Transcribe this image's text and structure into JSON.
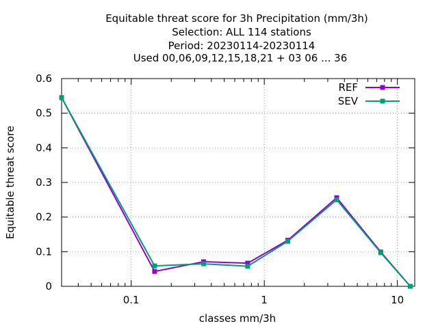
{
  "chart_data": {
    "type": "line",
    "title_lines": [
      "Equitable threat score  for 3h Precipitation (mm/3h)",
      "Selection: ALL    114 stations",
      "Period: 20230114-20230114",
      "Used  00,06,09,12,15,18,21  + 03 06 ... 36"
    ],
    "xlabel": "classes mm/3h",
    "ylabel": "Equitable threat score",
    "x_scale": "log",
    "xlim": [
      0.03,
      13.5
    ],
    "ylim": [
      0,
      0.6
    ],
    "x_ticks": [
      {
        "value": 0.1,
        "label": "0.1"
      },
      {
        "value": 1,
        "label": "1"
      },
      {
        "value": 10,
        "label": "10"
      }
    ],
    "y_ticks": [
      {
        "value": 0,
        "label": "0"
      },
      {
        "value": 0.1,
        "label": "0.1"
      },
      {
        "value": 0.2,
        "label": "0.2"
      },
      {
        "value": 0.3,
        "label": "0.3"
      },
      {
        "value": 0.4,
        "label": "0.4"
      },
      {
        "value": 0.5,
        "label": "0.5"
      },
      {
        "value": 0.6,
        "label": "0.6"
      }
    ],
    "grid": true,
    "legend_position": "top-right",
    "x": [
      0.03,
      0.15,
      0.35,
      0.75,
      1.5,
      3.5,
      7.5,
      12.5
    ],
    "series": [
      {
        "name": "REF",
        "color": "#9400d3",
        "values": [
          0.545,
          0.043,
          0.071,
          0.067,
          0.133,
          0.256,
          0.099,
          0.0
        ]
      },
      {
        "name": "SEV",
        "color": "#009e73",
        "values": [
          0.545,
          0.059,
          0.065,
          0.058,
          0.13,
          0.25,
          0.097,
          0.0
        ]
      }
    ]
  }
}
